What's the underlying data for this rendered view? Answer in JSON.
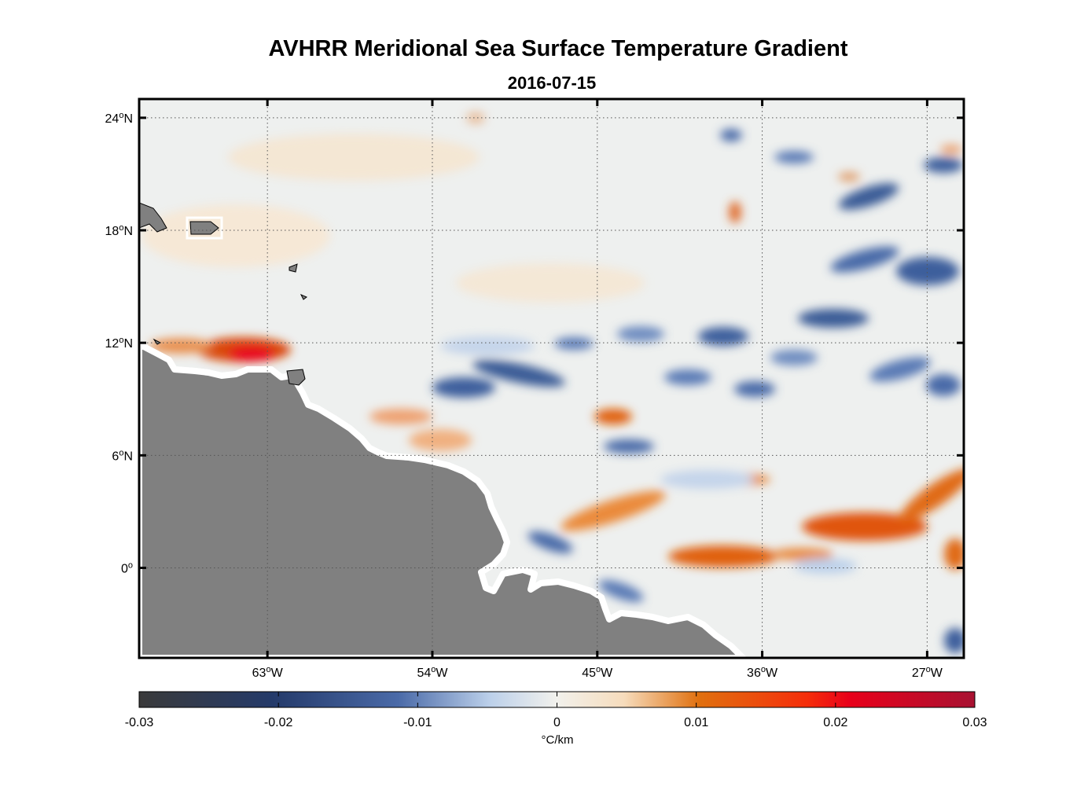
{
  "figure": {
    "title": "AVHRR Meridional Sea Surface Temperature Gradient",
    "date": "2016-07-15"
  },
  "map": {
    "lat_labels": [
      {
        "deg": "24",
        "hemi": "N",
        "value": 24
      },
      {
        "deg": "18",
        "hemi": "N",
        "value": 18
      },
      {
        "deg": "12",
        "hemi": "N",
        "value": 12
      },
      {
        "deg": "6",
        "hemi": "N",
        "value": 6
      },
      {
        "deg": "0",
        "hemi": "",
        "value": 0
      }
    ],
    "lon_labels": [
      {
        "deg": "63",
        "hemi": "W",
        "value": -63
      },
      {
        "deg": "54",
        "hemi": "W",
        "value": -54
      },
      {
        "deg": "45",
        "hemi": "W",
        "value": -45
      },
      {
        "deg": "36",
        "hemi": "W",
        "value": -36
      },
      {
        "deg": "27",
        "hemi": "W",
        "value": -27
      }
    ],
    "extent": {
      "lon_min": -70,
      "lon_max": -25,
      "lat_min": -4.8,
      "lat_max": 25
    },
    "land_color": "#808080",
    "ocean_base_color": "#eef0ef"
  },
  "colorbar": {
    "ticks": [
      "-0.03",
      "-0.02",
      "-0.01",
      "0",
      "0.01",
      "0.02",
      "0.03"
    ],
    "tick_values": [
      -0.03,
      -0.02,
      -0.01,
      0,
      0.01,
      0.02,
      0.03
    ],
    "range": [
      -0.03,
      0.03
    ],
    "units": "°C/km",
    "stops": [
      "#3a3a3a",
      "#243a6a",
      "#4a6aa8",
      "#bcd0ea",
      "#f2f1ec",
      "#f6dcbc",
      "#e0700f",
      "#f52d0a",
      "#e8001a",
      "#a81232"
    ]
  }
}
